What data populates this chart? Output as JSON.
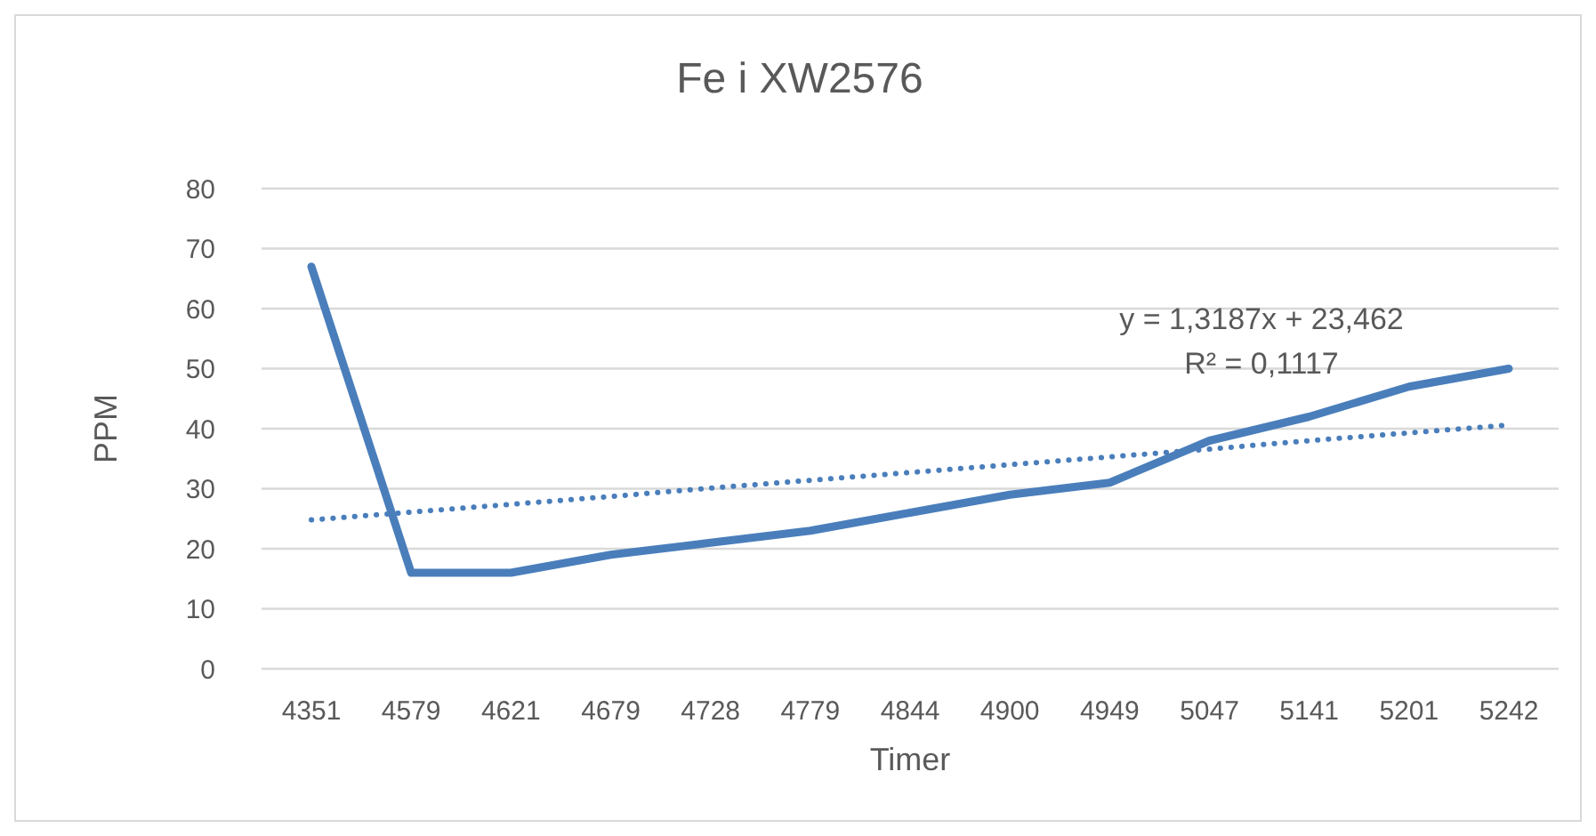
{
  "chart_data": {
    "type": "line",
    "title": "Fe i XW2576",
    "xlabel": "Timer",
    "ylabel": "PPM",
    "categories": [
      "4351",
      "4579",
      "4621",
      "4679",
      "4728",
      "4779",
      "4844",
      "4900",
      "4949",
      "5047",
      "5141",
      "5201",
      "5242"
    ],
    "series": [
      {
        "color": "#4a7ebb",
        "line_style": "solid",
        "values": [
          67,
          16,
          16,
          19,
          21,
          23,
          26,
          29,
          31,
          38,
          42,
          47,
          50
        ]
      },
      {
        "color": "#4a7ebb",
        "line_style": "dotted",
        "values": [
          24.8,
          26.1,
          27.4,
          28.7,
          30.1,
          31.4,
          32.7,
          34.0,
          35.3,
          36.6,
          38.0,
          39.3,
          40.6
        ]
      }
    ],
    "ylim": [
      0,
      80
    ],
    "yticks": [
      0,
      10,
      20,
      30,
      40,
      50,
      60,
      70,
      80
    ],
    "grid": "y",
    "marker": "none",
    "annotations": [
      "y = 1,3187x + 23,462",
      "R² = 0,1117"
    ]
  }
}
